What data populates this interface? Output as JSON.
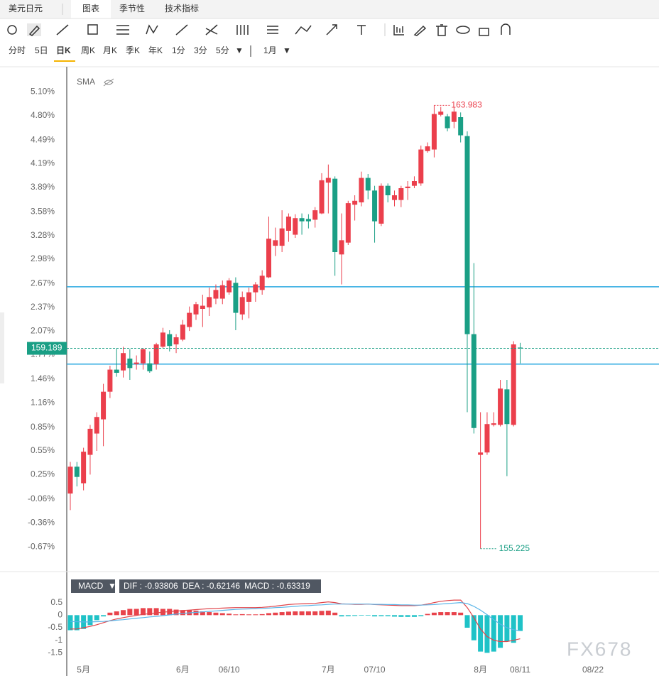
{
  "header": {
    "symbol": "美元日元",
    "tabs": [
      "图表",
      "季节性",
      "技术指标"
    ],
    "active_tab": 0
  },
  "periods": [
    "分时",
    "5日",
    "日K",
    "周K",
    "月K",
    "季K",
    "年K",
    "1分",
    "3分",
    "5分"
  ],
  "active_period": 2,
  "period_dropdown": "1月",
  "indicator": "SMA",
  "indicator_selector": "MACD",
  "macd_legend": [
    "DIF : -0.93806",
    "DEA : -0.62146",
    "MACD : -0.63319"
  ],
  "watermark": "FX678",
  "chart_data": [
    {
      "type": "candlestick",
      "up_color": "#eb3f4c",
      "down_color": "#1a9f85",
      "ylim": [
        -0.98,
        5.41
      ],
      "yticks": [
        {
          "value": 5.1,
          "label": "5.10%"
        },
        {
          "value": 4.8,
          "label": "4.80%"
        },
        {
          "value": 4.49,
          "label": "4.49%"
        },
        {
          "value": 4.19,
          "label": "4.19%"
        },
        {
          "value": 3.89,
          "label": "3.89%"
        },
        {
          "value": 3.58,
          "label": "3.58%"
        },
        {
          "value": 3.28,
          "label": "3.28%"
        },
        {
          "value": 2.98,
          "label": "2.98%"
        },
        {
          "value": 2.67,
          "label": "2.67%"
        },
        {
          "value": 2.37,
          "label": "2.37%"
        },
        {
          "value": 2.07,
          "label": "2.07%"
        },
        {
          "value": 1.77,
          "label": "1.77%"
        },
        {
          "value": 1.46,
          "label": "1.46%"
        },
        {
          "value": 1.16,
          "label": "1.16%"
        },
        {
          "value": 0.85,
          "label": "0.85%"
        },
        {
          "value": 0.55,
          "label": "0.55%"
        },
        {
          "value": 0.25,
          "label": "0.25%"
        },
        {
          "value": -0.06,
          "label": "-0.06%"
        },
        {
          "value": -0.36,
          "label": "-0.36%"
        },
        {
          "value": -0.67,
          "label": "-0.67%"
        }
      ],
      "hlines": [
        2.63,
        1.65
      ],
      "hline_color": "#29a8e0",
      "last_price_label": "159.189",
      "max_label": "163.983",
      "min_label": "155.225",
      "open": [
        0.01,
        0.35,
        0.14,
        0.5,
        0.77,
        0.95,
        1.3,
        1.58,
        1.57,
        1.72,
        1.65,
        1.66,
        1.66,
        1.65,
        1.87,
        2.03,
        1.9,
        1.96,
        2.12,
        2.28,
        2.35,
        2.37,
        2.48,
        2.48,
        2.56,
        2.68,
        2.28,
        2.44,
        2.56,
        2.59,
        2.75,
        3.15,
        3.15,
        3.34,
        3.29,
        3.5,
        3.49,
        3.48,
        3.56,
        3.95,
        4.0,
        3.04,
        3.19,
        3.67,
        3.7,
        4.01,
        3.85,
        3.43,
        3.91,
        3.73,
        3.73,
        3.88,
        3.91,
        3.94,
        4.35,
        4.37,
        4.81,
        4.79,
        4.72,
        4.78,
        4.54,
        2.03,
        0.5,
        0.53,
        0.88,
        0.88,
        1.33,
        0.88,
        1.86
      ],
      "high": [
        0.41,
        0.41,
        0.59,
        0.88,
        1.04,
        1.4,
        1.63,
        1.85,
        1.87,
        1.84,
        1.76,
        1.85,
        1.81,
        1.92,
        2.11,
        2.08,
        2.03,
        2.21,
        2.38,
        2.44,
        2.53,
        2.62,
        2.66,
        2.71,
        2.74,
        2.75,
        2.57,
        2.62,
        2.69,
        2.84,
        3.52,
        3.38,
        3.6,
        3.56,
        3.55,
        3.56,
        3.55,
        3.64,
        4.07,
        4.18,
        4.03,
        3.56,
        3.72,
        3.79,
        4.09,
        4.06,
        3.91,
        3.94,
        3.94,
        3.85,
        3.91,
        3.97,
        4.03,
        4.42,
        4.46,
        4.93,
        4.91,
        4.82,
        4.91,
        4.84,
        4.6,
        2.93,
        1.04,
        1.04,
        1.04,
        1.45,
        1.45,
        1.94,
        1.92
      ],
      "low": [
        -0.2,
        0.1,
        0.05,
        0.25,
        0.55,
        0.61,
        1.22,
        1.49,
        1.48,
        1.45,
        1.58,
        1.58,
        1.54,
        1.58,
        1.85,
        1.81,
        1.79,
        1.94,
        2.07,
        2.21,
        2.12,
        2.26,
        2.41,
        2.41,
        2.53,
        2.08,
        2.21,
        2.23,
        2.44,
        2.53,
        2.74,
        3.02,
        3.07,
        3.2,
        3.25,
        3.29,
        3.37,
        3.38,
        3.55,
        3.56,
        2.77,
        2.66,
        3.16,
        3.47,
        3.65,
        3.74,
        3.19,
        3.4,
        3.7,
        3.65,
        3.64,
        3.73,
        3.88,
        3.91,
        4.33,
        4.27,
        4.79,
        4.6,
        4.64,
        4.46,
        1.04,
        0.77,
        -0.69,
        0.5,
        0.86,
        0.86,
        0.23,
        0.86,
        1.66
      ],
      "close": [
        0.35,
        0.22,
        0.54,
        0.83,
        0.98,
        1.3,
        1.58,
        1.54,
        1.79,
        1.6,
        1.67,
        1.84,
        1.56,
        1.9,
        2.05,
        1.88,
        1.99,
        2.15,
        2.3,
        2.41,
        2.39,
        2.5,
        2.59,
        2.65,
        2.71,
        2.3,
        2.5,
        2.56,
        2.66,
        2.77,
        3.24,
        3.22,
        3.37,
        3.52,
        3.5,
        3.46,
        3.46,
        3.6,
        3.98,
        4.01,
        3.07,
        3.22,
        3.69,
        3.72,
        4.01,
        3.85,
        3.46,
        3.91,
        3.79,
        3.79,
        3.88,
        3.9,
        3.97,
        4.37,
        4.41,
        4.82,
        4.85,
        4.64,
        4.85,
        4.55,
        2.03,
        0.84,
        0.53,
        0.89,
        0.9,
        1.34,
        0.89,
        1.9,
        1.85
      ]
    },
    {
      "type": "macd",
      "categories": [
        null,
        null,
        "5月",
        null,
        null,
        null,
        null,
        null,
        null,
        null,
        null,
        null,
        null,
        null,
        null,
        null,
        null,
        "6月",
        null,
        null,
        null,
        null,
        null,
        null,
        "06/10",
        null,
        null,
        null,
        null,
        null,
        null,
        null,
        null,
        null,
        null,
        null,
        null,
        null,
        null,
        "7月",
        null,
        null,
        null,
        null,
        null,
        null,
        "07/10",
        null,
        null,
        null,
        null,
        null,
        null,
        null,
        null,
        null,
        null,
        null,
        null,
        null,
        null,
        null,
        "8月",
        null,
        null,
        null,
        null,
        null,
        "08/11",
        null,
        null,
        null,
        null,
        null,
        null,
        null,
        null,
        null,
        null,
        "08/22"
      ],
      "ylim": [
        -1.8,
        0.8
      ],
      "yticks": [
        0.5,
        0,
        -0.5,
        -1,
        -1.5
      ],
      "pos_color": "#e8434b",
      "neg_color": "#1fc2c7",
      "series": [
        {
          "name": "MACD",
          "kind": "bar",
          "values": [
            -0.6,
            -0.6,
            -0.55,
            -0.4,
            -0.2,
            -0.05,
            0.1,
            0.15,
            0.2,
            0.25,
            0.25,
            0.28,
            0.28,
            0.28,
            0.25,
            0.25,
            0.22,
            0.2,
            0.2,
            0.18,
            0.15,
            0.12,
            0.1,
            0.08,
            0.06,
            0.03,
            0.04,
            0.03,
            0.03,
            0.04,
            0.08,
            0.1,
            0.12,
            0.14,
            0.15,
            0.15,
            0.15,
            0.15,
            0.17,
            0.18,
            0.1,
            -0.05,
            -0.04,
            -0.03,
            -0.02,
            -0.02,
            -0.05,
            -0.04,
            -0.04,
            -0.06,
            -0.07,
            -0.07,
            -0.07,
            -0.04,
            0.05,
            0.1,
            0.12,
            0.12,
            0.12,
            0.1,
            -0.5,
            -1.0,
            -1.45,
            -1.5,
            -1.45,
            -1.3,
            -1.05,
            -1.1,
            -0.63,
            null,
            null,
            null,
            null,
            null,
            null,
            null,
            null,
            null,
            null,
            null
          ]
        },
        {
          "name": "DIF",
          "kind": "line",
          "color": "#e0444a",
          "values": [
            -0.55,
            -0.55,
            -0.5,
            -0.45,
            -0.38,
            -0.3,
            -0.22,
            -0.15,
            -0.1,
            -0.05,
            -0.01,
            0.03,
            0.06,
            0.09,
            0.12,
            0.14,
            0.16,
            0.18,
            0.2,
            0.22,
            0.24,
            0.26,
            0.27,
            0.28,
            0.29,
            0.3,
            0.3,
            0.3,
            0.3,
            0.31,
            0.33,
            0.36,
            0.39,
            0.42,
            0.44,
            0.45,
            0.46,
            0.47,
            0.5,
            0.53,
            0.5,
            0.45,
            0.44,
            0.43,
            0.43,
            0.44,
            0.42,
            0.41,
            0.4,
            0.39,
            0.38,
            0.38,
            0.38,
            0.4,
            0.44,
            0.5,
            0.55,
            0.58,
            0.6,
            0.6,
            0.3,
            -0.1,
            -0.55,
            -0.85,
            -1.0,
            -1.05,
            -1.05,
            -1.0,
            -0.94,
            null,
            null,
            null,
            null,
            null,
            null,
            null,
            null,
            null,
            null,
            null
          ]
        },
        {
          "name": "DEA",
          "kind": "line",
          "color": "#5ab5e8",
          "values": [
            -0.25,
            -0.26,
            -0.27,
            -0.27,
            -0.26,
            -0.25,
            -0.23,
            -0.2,
            -0.18,
            -0.15,
            -0.12,
            -0.1,
            -0.07,
            -0.05,
            -0.02,
            0.01,
            0.04,
            0.07,
            0.09,
            0.11,
            0.13,
            0.15,
            0.17,
            0.19,
            0.21,
            0.23,
            0.24,
            0.25,
            0.26,
            0.27,
            0.28,
            0.3,
            0.31,
            0.33,
            0.35,
            0.37,
            0.38,
            0.4,
            0.41,
            0.43,
            0.44,
            0.44,
            0.44,
            0.44,
            0.44,
            0.44,
            0.43,
            0.43,
            0.42,
            0.42,
            0.41,
            0.41,
            0.4,
            0.4,
            0.41,
            0.42,
            0.44,
            0.46,
            0.48,
            0.5,
            0.46,
            0.35,
            0.2,
            0.02,
            -0.18,
            -0.36,
            -0.5,
            -0.58,
            -0.62,
            null,
            null,
            null,
            null,
            null,
            null,
            null,
            null,
            null,
            null,
            null
          ]
        }
      ]
    }
  ]
}
